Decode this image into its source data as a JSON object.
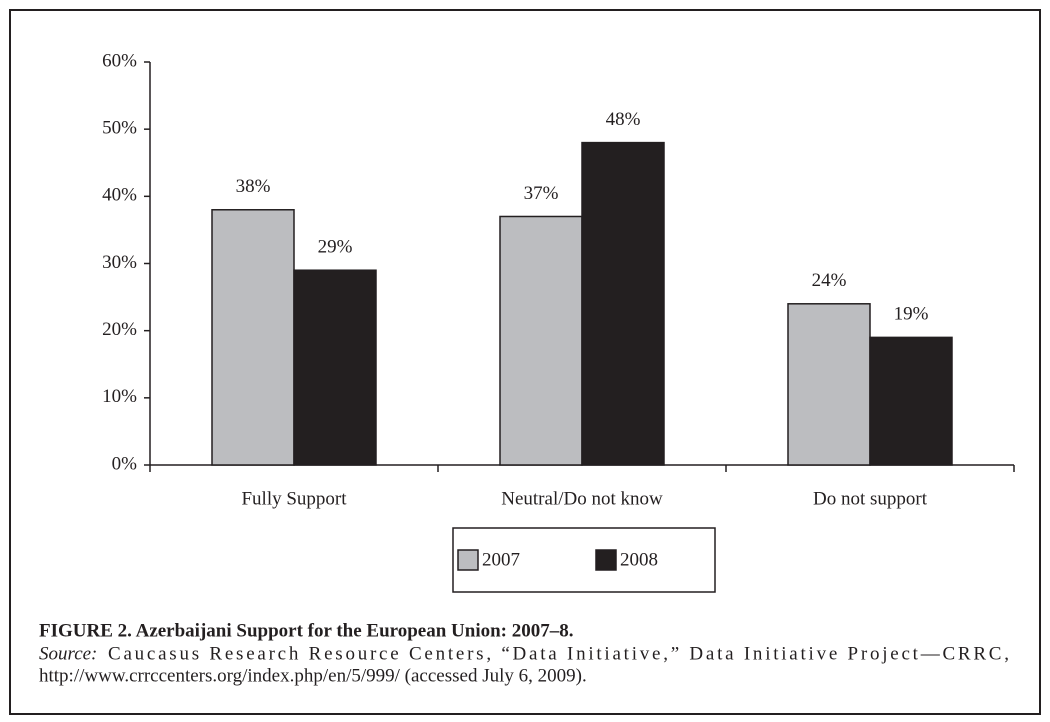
{
  "chart_data": {
    "type": "bar",
    "categories": [
      "Fully Support",
      "Neutral/Do not know",
      "Do not support"
    ],
    "series": [
      {
        "name": "2007",
        "color": "#bcbdc0",
        "values": [
          38,
          37,
          24
        ],
        "value_labels": [
          "38%",
          "37%",
          "24%"
        ]
      },
      {
        "name": "2008",
        "color": "#231f20",
        "values": [
          29,
          48,
          19
        ],
        "value_labels": [
          "29%",
          "48%",
          "19%"
        ]
      }
    ],
    "ylim": [
      0,
      60
    ],
    "yticks": [
      {
        "value": 0,
        "label": "0%"
      },
      {
        "value": 10,
        "label": "10%"
      },
      {
        "value": 20,
        "label": "20%"
      },
      {
        "value": 30,
        "label": "30%"
      },
      {
        "value": 40,
        "label": "40%"
      },
      {
        "value": 50,
        "label": "50%"
      },
      {
        "value": 60,
        "label": "60%"
      }
    ],
    "legend": "bottom"
  },
  "caption": {
    "title": "FIGURE 2. Azerbaijani Support for the European Union: 2007–8.",
    "source_label": "Source:",
    "source_lines": [
      "Caucasus Research Resource Centers, “Data Initiative,” Data Initiative Project—CRRC,",
      "http://www.crrccenters.org/index.php/en/5/999/ (accessed July 6, 2009)."
    ]
  }
}
